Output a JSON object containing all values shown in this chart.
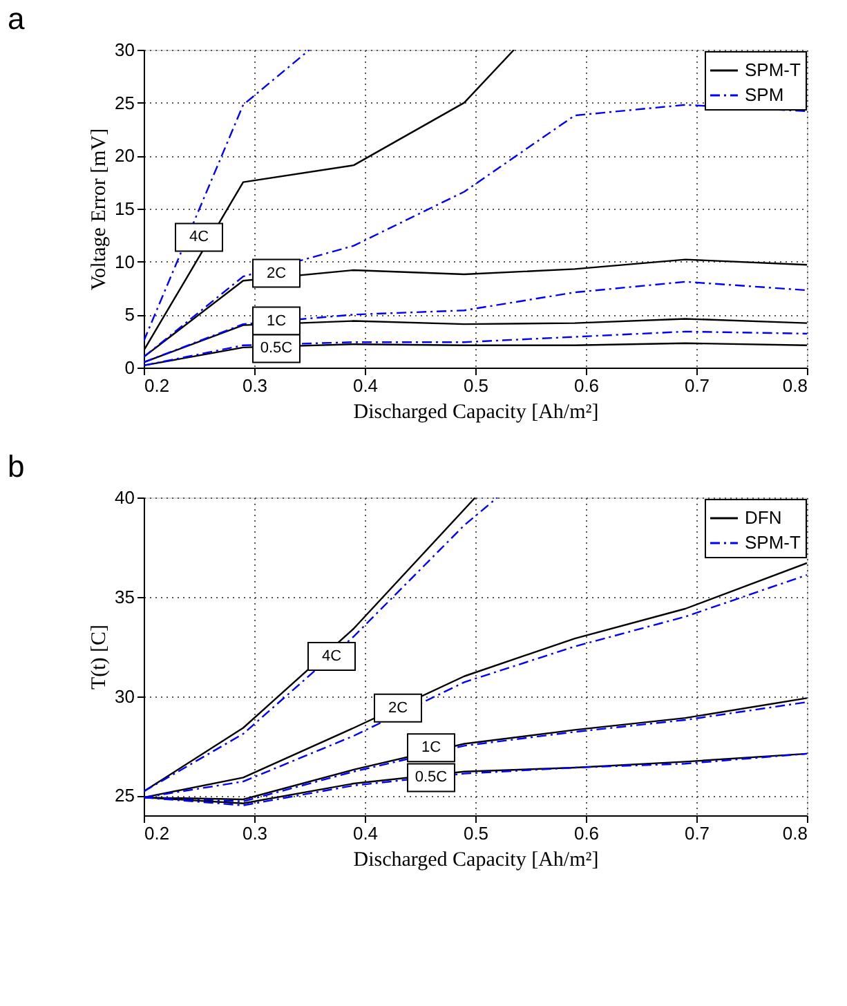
{
  "chart_data": [
    {
      "type": "line",
      "title": "a",
      "xlabel": "Discharged Capacity [Ah/m²]",
      "ylabel": "Voltage Error [mV]",
      "x": [
        0.2,
        0.29,
        0.39,
        0.49,
        0.59,
        0.69,
        0.8
      ],
      "xlim": [
        0.2,
        0.8
      ],
      "xticks": [
        0.2,
        0.3,
        0.4,
        0.5,
        0.6,
        0.7,
        0.8
      ],
      "ylim": [
        0,
        30
      ],
      "yticks": [
        0,
        5,
        10,
        15,
        20,
        25,
        30
      ],
      "grid": true,
      "legend": "top right",
      "series": [
        {
          "name": "SPM-T",
          "color": "#000000",
          "line_style": "solid",
          "x": [
            0.2,
            0.29,
            0.39,
            0.49,
            0.535
          ],
          "values": [
            1.6,
            17.5,
            19.1,
            25,
            30
          ]
        },
        {
          "name": "SPM",
          "color": "#0000ff",
          "line_style": "dashed",
          "x": [
            0.2,
            0.29,
            0.35
          ],
          "values": [
            2.5,
            24.8,
            30
          ]
        },
        {
          "color": "#000000",
          "line_style": "solid",
          "values": [
            1.0,
            8.2,
            9.2,
            8.8,
            9.3,
            10.2,
            9.7
          ]
        },
        {
          "color": "#0000ff",
          "line_style": "dashed",
          "values": [
            1.0,
            8.6,
            11.5,
            16.6,
            23.8,
            24.8,
            24.2
          ]
        },
        {
          "color": "#000000",
          "line_style": "solid",
          "values": [
            0.5,
            4.0,
            4.4,
            4.1,
            4.2,
            4.6,
            4.2
          ]
        },
        {
          "color": "#0000ff",
          "line_style": "dashed",
          "values": [
            0.5,
            4.1,
            5.0,
            5.4,
            7.1,
            8.1,
            7.3
          ]
        },
        {
          "color": "#000000",
          "line_style": "solid",
          "values": [
            0.2,
            1.9,
            2.2,
            2.1,
            2.1,
            2.3,
            2.1
          ]
        },
        {
          "color": "#0000ff",
          "line_style": "dashed",
          "values": [
            0.2,
            2.1,
            2.4,
            2.4,
            2.9,
            3.4,
            3.2
          ]
        }
      ],
      "annotations": [
        {
          "text": "4C",
          "x": 0.25,
          "y": 12.3
        },
        {
          "text": "2C",
          "x": 0.32,
          "y": 8.9
        },
        {
          "text": "1C",
          "x": 0.32,
          "y": 4.4
        },
        {
          "text": "0.5C",
          "x": 0.32,
          "y": 1.8
        }
      ]
    },
    {
      "type": "line",
      "title": "b",
      "xlabel": "Discharged Capacity [Ah/m²]",
      "ylabel": "T(t) [C]",
      "x": [
        0.2,
        0.29,
        0.39,
        0.49,
        0.59,
        0.69,
        0.8
      ],
      "xlim": [
        0.2,
        0.8
      ],
      "xticks": [
        0.2,
        0.3,
        0.4,
        0.5,
        0.6,
        0.7,
        0.8
      ],
      "ylim": [
        24,
        40
      ],
      "yticks": [
        25,
        30,
        35,
        40
      ],
      "grid": true,
      "legend": "top right",
      "series": [
        {
          "name": "DFN",
          "color": "#000000",
          "line_style": "solid",
          "x": [
            0.2,
            0.29,
            0.39,
            0.5
          ],
          "values": [
            25.2,
            28.4,
            33.4,
            40
          ]
        },
        {
          "name": "SPM-T",
          "color": "#0000ff",
          "line_style": "dashed",
          "x": [
            0.2,
            0.29,
            0.39,
            0.49,
            0.52
          ],
          "values": [
            25.2,
            28.1,
            33.0,
            38.6,
            40
          ]
        },
        {
          "color": "#000000",
          "line_style": "solid",
          "values": [
            24.9,
            25.9,
            28.4,
            31.0,
            32.9,
            34.4,
            36.7
          ]
        },
        {
          "color": "#0000ff",
          "line_style": "dashed",
          "values": [
            24.9,
            25.7,
            28.0,
            30.7,
            32.5,
            34.0,
            36.1
          ]
        },
        {
          "color": "#000000",
          "line_style": "solid",
          "values": [
            24.9,
            24.8,
            26.3,
            27.6,
            28.3,
            28.9,
            29.9
          ]
        },
        {
          "color": "#0000ff",
          "line_style": "dashed",
          "values": [
            24.9,
            24.7,
            26.2,
            27.5,
            28.2,
            28.8,
            29.7
          ]
        },
        {
          "color": "#000000",
          "line_style": "solid",
          "values": [
            24.9,
            24.6,
            25.6,
            26.2,
            26.4,
            26.7,
            27.1
          ]
        },
        {
          "color": "#0000ff",
          "line_style": "dashed",
          "values": [
            24.9,
            24.5,
            25.5,
            26.1,
            26.4,
            26.6,
            27.1
          ]
        }
      ],
      "annotations": [
        {
          "text": "4C",
          "x": 0.37,
          "y": 32.0
        },
        {
          "text": "2C",
          "x": 0.43,
          "y": 29.4
        },
        {
          "text": "1C",
          "x": 0.46,
          "y": 27.4
        },
        {
          "text": "0.5C",
          "x": 0.46,
          "y": 25.9
        }
      ]
    }
  ]
}
